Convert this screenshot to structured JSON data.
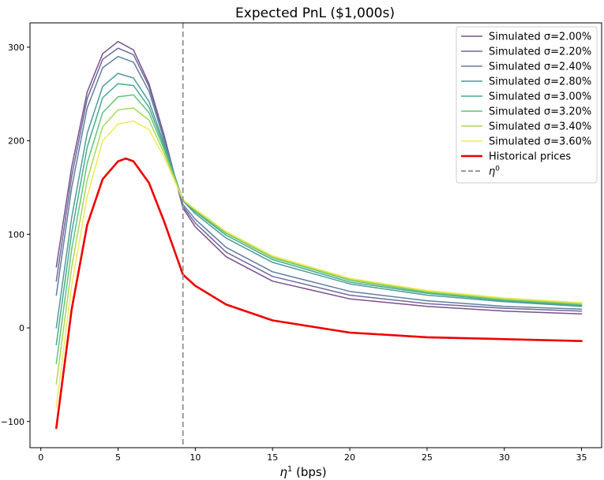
{
  "chart_data": {
    "type": "line",
    "title": "Expected PnL ($1,000s)",
    "xlabel_symbol": "η",
    "xlabel_superscript": "1",
    "xlabel_suffix": " (bps)",
    "ylabel": "",
    "xlim": [
      -0.7,
      36.3
    ],
    "ylim": [
      -128,
      326
    ],
    "xticks": [
      0,
      5,
      10,
      15,
      20,
      25,
      30,
      35
    ],
    "yticks": [
      -100,
      0,
      100,
      200,
      300
    ],
    "grid": false,
    "legend_position": "top-right",
    "series": [
      {
        "name": "Simulated σ=2.00%",
        "color": "#7b4f8c",
        "style": "solid",
        "x": [
          1,
          2,
          3,
          4,
          5,
          6,
          7,
          8,
          9.2,
          10,
          12,
          15,
          20,
          25,
          30,
          35
        ],
        "y": [
          65,
          172,
          252,
          293,
          306,
          297,
          261,
          205,
          128,
          108,
          76,
          50,
          31,
          23,
          18,
          15
        ]
      },
      {
        "name": "Simulated σ=2.20%",
        "color": "#6f6a9a",
        "style": "solid",
        "x": [
          1,
          2,
          3,
          4,
          5,
          6,
          7,
          8,
          9.2,
          10,
          12,
          15,
          20,
          25,
          30,
          35
        ],
        "y": [
          50,
          162,
          245,
          287,
          299,
          292,
          258,
          203,
          130,
          112,
          81,
          55,
          35,
          26,
          21,
          18
        ]
      },
      {
        "name": "Simulated σ=2.40%",
        "color": "#5f7fa2",
        "style": "solid",
        "x": [
          1,
          2,
          3,
          4,
          5,
          6,
          7,
          8,
          9.2,
          10,
          12,
          15,
          20,
          25,
          30,
          35
        ],
        "y": [
          35,
          150,
          235,
          278,
          290,
          284,
          253,
          200,
          132,
          116,
          86,
          60,
          39,
          29,
          23,
          20
        ]
      },
      {
        "name": "Simulated σ=2.80%",
        "color": "#4f9a9e",
        "style": "solid",
        "x": [
          1,
          2,
          3,
          4,
          5,
          6,
          7,
          8,
          9.2,
          10,
          12,
          15,
          20,
          25,
          30,
          35
        ],
        "y": [
          0,
          118,
          208,
          258,
          272,
          267,
          242,
          196,
          136,
          122,
          96,
          70,
          47,
          35,
          28,
          23
        ]
      },
      {
        "name": "Simulated σ=3.00%",
        "color": "#45ac8e",
        "style": "solid",
        "x": [
          1,
          2,
          3,
          4,
          5,
          6,
          7,
          8,
          9.2,
          10,
          12,
          15,
          20,
          25,
          30,
          35
        ],
        "y": [
          -18,
          102,
          193,
          246,
          261,
          259,
          236,
          193,
          137,
          124,
          99,
          73,
          49,
          37,
          29,
          24
        ]
      },
      {
        "name": "Simulated σ=3.20%",
        "color": "#62c47a",
        "style": "solid",
        "x": [
          1,
          2,
          3,
          4,
          5,
          6,
          7,
          8,
          9.2,
          10,
          12,
          15,
          20,
          25,
          30,
          35
        ],
        "y": [
          -38,
          84,
          176,
          230,
          247,
          249,
          230,
          190,
          137,
          125,
          101,
          75,
          51,
          38,
          30,
          25
        ]
      },
      {
        "name": "Simulated σ=3.40%",
        "color": "#a8d85a",
        "style": "solid",
        "x": [
          1,
          2,
          3,
          4,
          5,
          6,
          7,
          8,
          9.2,
          10,
          12,
          15,
          20,
          25,
          30,
          35
        ],
        "y": [
          -60,
          65,
          158,
          215,
          233,
          235,
          222,
          186,
          137,
          126,
          102,
          76,
          52,
          39,
          31,
          26
        ]
      },
      {
        "name": "Simulated σ=3.60%",
        "color": "#f3e856",
        "style": "solid",
        "x": [
          1,
          2,
          3,
          4,
          5,
          6,
          7,
          8,
          9.2,
          10,
          12,
          15,
          20,
          25,
          30,
          35
        ],
        "y": [
          -85,
          45,
          140,
          200,
          218,
          221,
          212,
          182,
          137,
          127,
          103,
          77,
          53,
          40,
          32,
          27
        ]
      },
      {
        "name": "Historical prices",
        "color": "#ee0000",
        "style": "bold",
        "x": [
          1,
          2,
          3,
          4,
          5,
          5.5,
          6,
          7,
          8,
          9.2,
          10,
          12,
          15,
          20,
          25,
          30,
          35
        ],
        "y": [
          -107,
          20,
          110,
          159,
          178,
          181,
          178,
          155,
          113,
          57,
          45,
          25,
          8,
          -5,
          -10,
          -12,
          -14
        ]
      }
    ],
    "vline": {
      "name": "η⁰",
      "symbol": "η",
      "superscript": "0",
      "x": 9.2,
      "color": "#999999",
      "style": "dashed"
    }
  }
}
